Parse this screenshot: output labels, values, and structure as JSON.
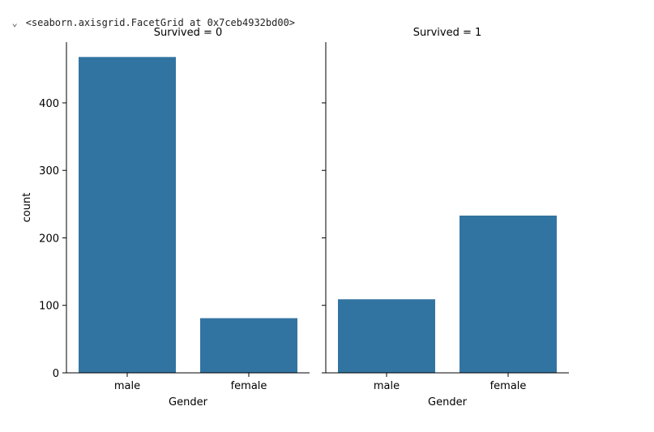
{
  "output": {
    "arrow": "⌄",
    "repr": "<seaborn.axisgrid.FacetGrid at 0x7ceb4932bd00>"
  },
  "colors": {
    "bar": "#3274a1",
    "axis": "#000000"
  },
  "chart_data": [
    {
      "type": "bar",
      "title": "Survived = 0",
      "xlabel": "Gender",
      "ylabel": "count",
      "categories": [
        "male",
        "female"
      ],
      "values": [
        468,
        81
      ],
      "ylim": [
        0,
        490
      ],
      "yticks": [
        0,
        100,
        200,
        300,
        400
      ],
      "grid": false
    },
    {
      "type": "bar",
      "title": "Survived = 1",
      "xlabel": "Gender",
      "ylabel": "",
      "categories": [
        "male",
        "female"
      ],
      "values": [
        109,
        233
      ],
      "ylim": [
        0,
        490
      ],
      "yticks": [
        0,
        100,
        200,
        300,
        400
      ],
      "grid": false
    }
  ]
}
